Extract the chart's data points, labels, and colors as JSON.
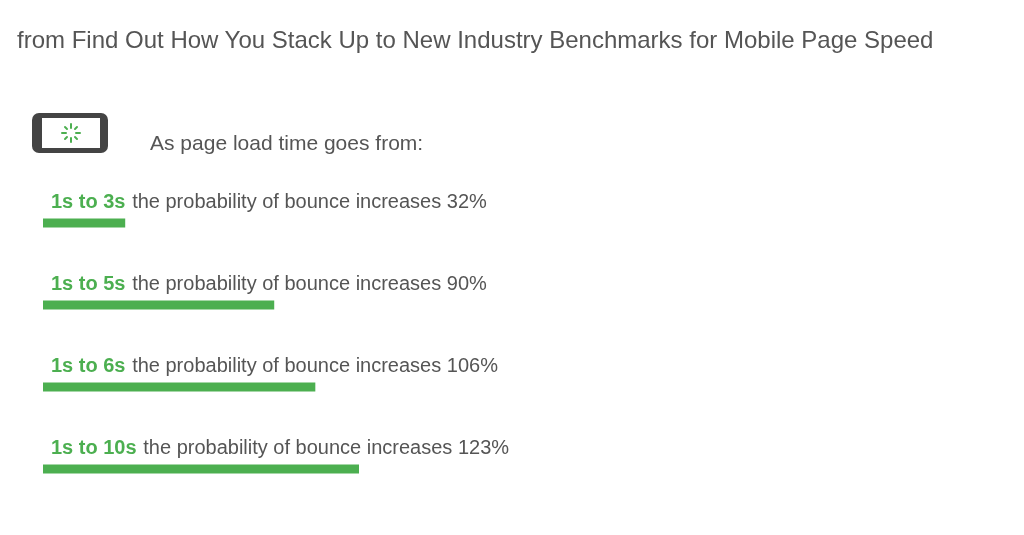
{
  "chart_data": {
    "type": "bar",
    "orientation": "horizontal",
    "title": "from Find Out How You Stack Up to New Industry Benchmarks for Mobile Page Speed",
    "subtitle": "As page load time goes from:",
    "categories": [
      "1s to 3s",
      "1s to 5s",
      "1s to 6s",
      "1s to 10s"
    ],
    "values": [
      32,
      90,
      106,
      123
    ],
    "value_labels": [
      "the probability of bounce increases 32%",
      "the probability of bounce increases 90%",
      "the probability of bounce increases 106%",
      "the probability of bounce increases 123%"
    ],
    "color": "#4caf50"
  }
}
